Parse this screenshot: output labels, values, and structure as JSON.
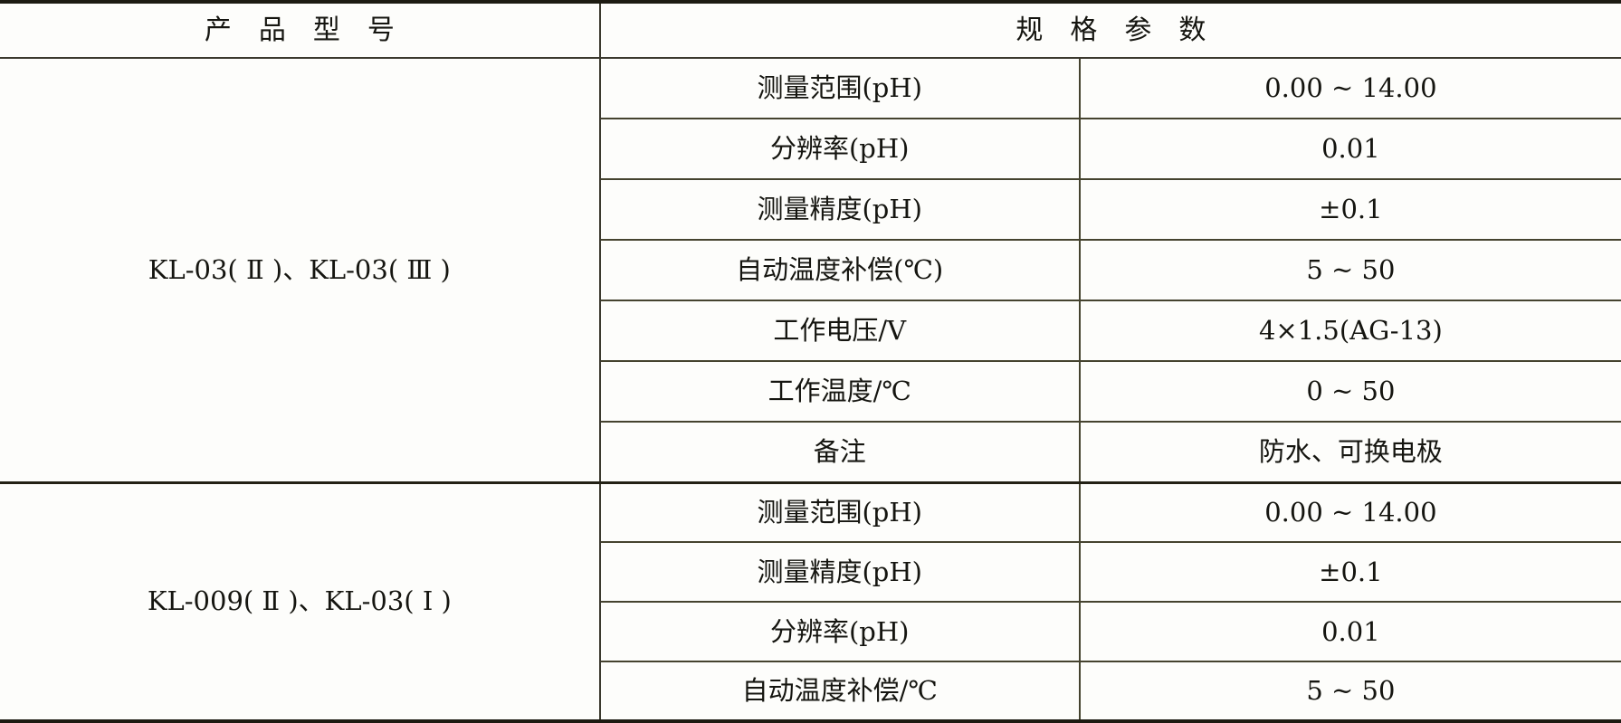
{
  "header": {
    "product_model": "产　品　型　号",
    "spec_params": "规　格　参　数"
  },
  "sections": [
    {
      "model": "KL-03( Ⅱ )、KL-03( Ⅲ )",
      "rows": [
        {
          "name": "测量范围(pH)",
          "value": "0.00 ~ 14.00"
        },
        {
          "name": "分辨率(pH)",
          "value": "0.01"
        },
        {
          "name": "测量精度(pH)",
          "value": "±0.1"
        },
        {
          "name": "自动温度补偿(℃)",
          "value": "5 ~ 50"
        },
        {
          "name": "工作电压/V",
          "value": "4×1.5(AG-13)"
        },
        {
          "name": "工作温度/℃",
          "value": "0 ~ 50"
        },
        {
          "name": "备注",
          "value": "防水、可换电极"
        }
      ]
    },
    {
      "model": "KL-009( Ⅱ )、KL-03( Ⅰ )",
      "rows": [
        {
          "name": "测量范围(pH)",
          "value": "0.00 ~ 14.00"
        },
        {
          "name": "测量精度(pH)",
          "value": "±0.1"
        },
        {
          "name": "分辨率(pH)",
          "value": "0.01"
        },
        {
          "name": "自动温度补偿/℃",
          "value": "5 ~ 50"
        }
      ]
    }
  ],
  "colors": {
    "outer_border": "#1d1b12",
    "grid_line": "#45432f",
    "text": "#151510",
    "background": "#fdfdfb"
  }
}
